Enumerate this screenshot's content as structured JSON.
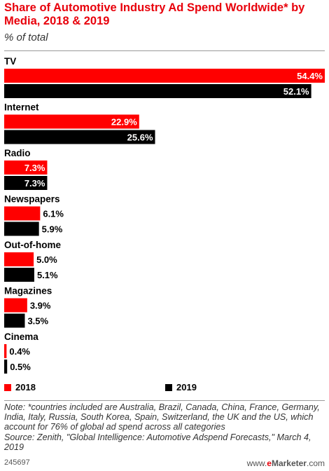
{
  "chart_data": {
    "type": "bar",
    "orientation": "horizontal",
    "title": "Share of Automotive Industry Ad Spend Worldwide* by Media, 2018 & 2019",
    "subtitle": "% of total",
    "categories": [
      "TV",
      "Internet",
      "Radio",
      "Newspapers",
      "Out-of-home",
      "Magazines",
      "Cinema"
    ],
    "series": [
      {
        "name": "2018",
        "values": [
          54.4,
          22.9,
          7.3,
          6.1,
          5.0,
          3.9,
          0.4
        ],
        "labels": [
          "54.4%",
          "22.9%",
          "7.3%",
          "6.1%",
          "5.0%",
          "3.9%",
          "0.4%"
        ],
        "color": "#ff0000"
      },
      {
        "name": "2019",
        "values": [
          52.1,
          25.6,
          7.3,
          5.9,
          5.1,
          3.5,
          0.5
        ],
        "labels": [
          "52.1%",
          "25.6%",
          "7.3%",
          "5.9%",
          "5.1%",
          "3.5%",
          "0.5%"
        ],
        "color": "#000000"
      }
    ],
    "xlim": [
      0,
      54.4
    ],
    "grid": false,
    "legend_position": "bottom"
  },
  "note": "Note: *countries included are Australia, Brazil, Canada, China, France, Germany, India, Italy, Russia, South Korea, Spain, Switzerland, the UK and the US, which account for 76% of global ad spend across all categories",
  "source": "Source: Zenith, \"Global Intelligence: Automotive Adspend Forecasts,\" March 4, 2019",
  "footer": {
    "chart_id": "245697",
    "brand_www": "www.",
    "brand_e": "e",
    "brand_rest": "Marketer",
    "brand_tld": ".com"
  }
}
